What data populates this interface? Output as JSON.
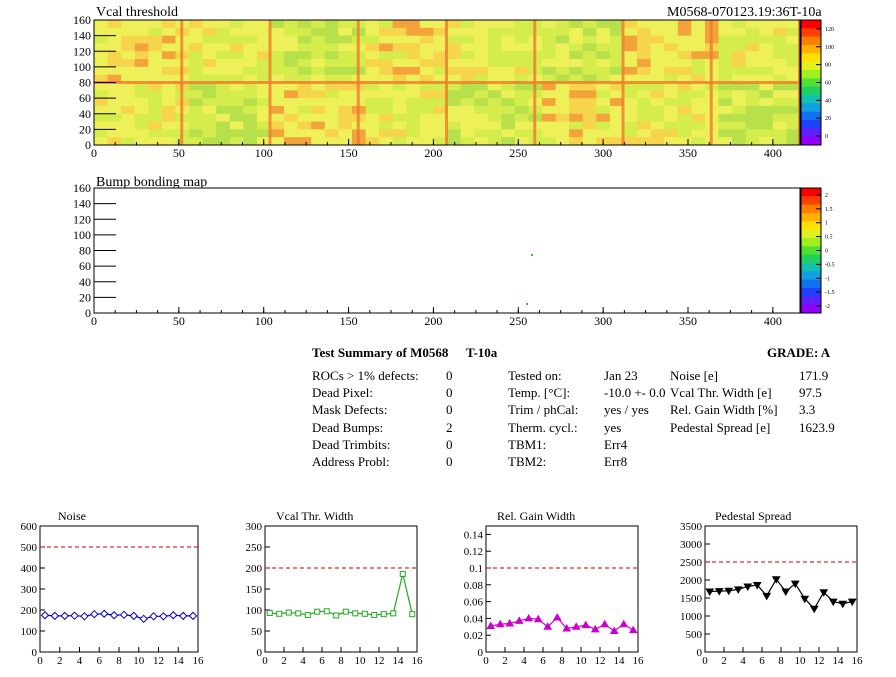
{
  "header": {
    "title": "Vcal threshold",
    "module_id": "M0568-070123.19:36T-10a"
  },
  "bump_map": {
    "title": "Bump bonding map"
  },
  "map_axes": {
    "x_ticks": [
      "0",
      "50",
      "100",
      "150",
      "200",
      "250",
      "300",
      "350",
      "400"
    ],
    "y_ticks": [
      "0",
      "20",
      "40",
      "60",
      "80",
      "100",
      "120",
      "140",
      "160"
    ]
  },
  "colorbar_top": {
    "ticks": [
      "120",
      "100",
      "80",
      "60",
      "40",
      "20",
      "0"
    ]
  },
  "colorbar_bottom": {
    "ticks": [
      "2",
      "1.5",
      "1",
      "0.5",
      "0",
      "-0.5",
      "-1",
      "-1.5",
      "-2"
    ]
  },
  "summary": {
    "title": "Test Summary of M0568",
    "temp_tag": "T-10a",
    "grade": "GRADE:  A",
    "col1": [
      {
        "label": "ROCs > 1% defects:",
        "value": "0"
      },
      {
        "label": "Dead Pixel:",
        "value": "0"
      },
      {
        "label": "Mask Defects:",
        "value": "0"
      },
      {
        "label": "Dead Bumps:",
        "value": "2"
      },
      {
        "label": "Dead Trimbits:",
        "value": "0"
      },
      {
        "label": "Address Probl:",
        "value": "0"
      }
    ],
    "col2": [
      {
        "label": "Tested on:",
        "value": "Jan 23"
      },
      {
        "label": "Temp. [°C]:",
        "value": "-10.0 +- 0.0"
      },
      {
        "label": "Trim / phCal:",
        "value": "yes / yes"
      },
      {
        "label": "Therm. cycl.:",
        "value": "yes"
      },
      {
        "label": "TBM1:",
        "value": "Err4"
      },
      {
        "label": "TBM2:",
        "value": "Err8"
      }
    ],
    "col3": [
      {
        "label": "Noise [e]",
        "value": "171.9"
      },
      {
        "label": "Vcal Thr. Width [e]",
        "value": "97.5"
      },
      {
        "label": "Rel. Gain Width [%]",
        "value": "3.3"
      },
      {
        "label": "Pedestal Spread [e]",
        "value": "1623.9"
      }
    ]
  },
  "chart_data": [
    {
      "type": "line",
      "title": "Noise",
      "color": "#0000cc",
      "marker": "diamond",
      "x": [
        0,
        1,
        2,
        3,
        4,
        5,
        6,
        7,
        8,
        9,
        10,
        11,
        12,
        13,
        14,
        15
      ],
      "values": [
        175,
        172,
        172,
        173,
        170,
        180,
        182,
        175,
        177,
        172,
        158,
        170,
        170,
        175,
        172,
        172
      ],
      "threshold": 500,
      "xlim": [
        0,
        16
      ],
      "ylim": [
        0,
        600
      ],
      "x_ticks": [
        0,
        2,
        4,
        6,
        8,
        10,
        12,
        14,
        16
      ],
      "y_ticks": [
        0,
        100,
        200,
        300,
        400,
        500,
        600
      ]
    },
    {
      "type": "line",
      "title": "Vcal Thr. Width",
      "color": "#22aa22",
      "marker": "square",
      "x": [
        0,
        1,
        2,
        3,
        4,
        5,
        6,
        7,
        8,
        9,
        10,
        11,
        12,
        13,
        14,
        15
      ],
      "values": [
        93,
        91,
        94,
        92,
        88,
        96,
        97,
        87,
        96,
        92,
        91,
        88,
        90,
        92,
        186,
        90
      ],
      "threshold": 200,
      "xlim": [
        0,
        16
      ],
      "ylim": [
        0,
        300
      ],
      "x_ticks": [
        0,
        2,
        4,
        6,
        8,
        10,
        12,
        14,
        16
      ],
      "y_ticks": [
        0,
        50,
        100,
        150,
        200,
        250,
        300
      ]
    },
    {
      "type": "line",
      "title": "Rel. Gain Width",
      "color": "#cc00cc",
      "marker": "triangle",
      "x": [
        0,
        1,
        2,
        3,
        4,
        5,
        6,
        7,
        8,
        9,
        10,
        11,
        12,
        13,
        14,
        15
      ],
      "values": [
        0.031,
        0.033,
        0.034,
        0.037,
        0.04,
        0.039,
        0.03,
        0.041,
        0.028,
        0.03,
        0.032,
        0.027,
        0.033,
        0.025,
        0.033,
        0.026
      ],
      "threshold": 0.1,
      "xlim": [
        0,
        16
      ],
      "ylim": [
        0,
        0.15
      ],
      "x_ticks": [
        0,
        2,
        4,
        6,
        8,
        10,
        12,
        14,
        16
      ],
      "y_ticks": [
        0,
        0.02,
        0.04,
        0.06,
        0.08,
        0.1,
        0.12,
        0.14
      ]
    },
    {
      "type": "line",
      "title": "Pedestal Spread",
      "color": "#000000",
      "marker": "triangle-down",
      "x": [
        0,
        1,
        2,
        3,
        4,
        5,
        6,
        7,
        8,
        9,
        10,
        11,
        12,
        13,
        14,
        15
      ],
      "values": [
        1680,
        1690,
        1700,
        1740,
        1820,
        1860,
        1560,
        2020,
        1680,
        1900,
        1480,
        1200,
        1660,
        1400,
        1340,
        1400
      ],
      "threshold": 2500,
      "xlim": [
        0,
        16
      ],
      "ylim": [
        0,
        3500
      ],
      "x_ticks": [
        0,
        2,
        4,
        6,
        8,
        10,
        12,
        14,
        16
      ],
      "y_ticks": [
        0,
        500,
        1000,
        1500,
        2000,
        2500,
        3000,
        3500
      ]
    }
  ]
}
